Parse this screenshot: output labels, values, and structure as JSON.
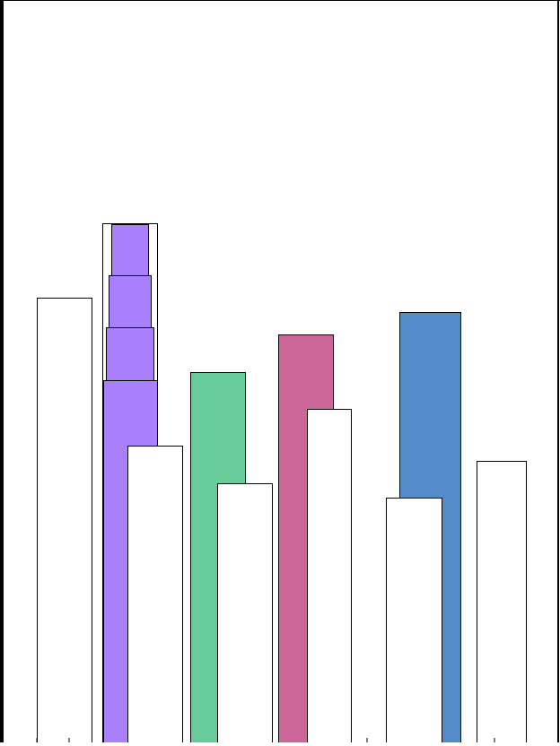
{
  "palette": {
    "outline": "#000000",
    "hollow_fill": "#ffffff",
    "purple": "#a97ffb",
    "green": "#66cc99",
    "pink": "#cc6699",
    "blue": "#528bc8"
  },
  "shapes": [
    {
      "name": "hollow-bar-1",
      "fill": "hollow_fill"
    },
    {
      "name": "purple-bar-base",
      "fill": "purple"
    },
    {
      "name": "purple-stack-block-1",
      "fill": "purple"
    },
    {
      "name": "purple-stack-block-2",
      "fill": "purple"
    },
    {
      "name": "purple-stack-block-3",
      "fill": "purple"
    },
    {
      "name": "purple-stack-outline",
      "fill": "none"
    },
    {
      "name": "hollow-bar-2",
      "fill": "hollow_fill"
    },
    {
      "name": "green-bar",
      "fill": "green"
    },
    {
      "name": "hollow-bar-3",
      "fill": "hollow_fill"
    },
    {
      "name": "pink-bar",
      "fill": "pink"
    },
    {
      "name": "hollow-bar-4",
      "fill": "hollow_fill"
    },
    {
      "name": "blue-bar",
      "fill": "blue"
    },
    {
      "name": "hollow-bar-5",
      "fill": "hollow_fill"
    },
    {
      "name": "hollow-bar-6",
      "fill": "hollow_fill"
    }
  ]
}
